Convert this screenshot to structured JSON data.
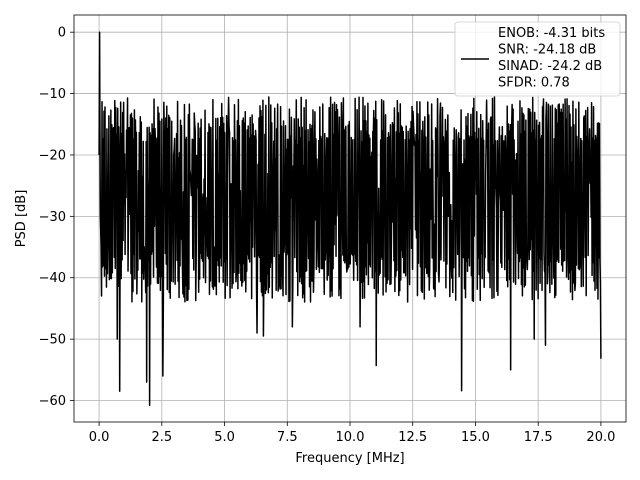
{
  "chart_data": {
    "type": "line",
    "title": "",
    "xlabel": "Frequency [MHz]",
    "ylabel": "PSD [dB]",
    "xlim": [
      -1.0,
      21.0
    ],
    "ylim": [
      -63.5,
      2.8
    ],
    "xticks": [
      0.0,
      2.5,
      5.0,
      7.5,
      10.0,
      12.5,
      15.0,
      17.5,
      20.0
    ],
    "xtick_labels": [
      "0.0",
      "2.5",
      "5.0",
      "7.5",
      "10.0",
      "12.5",
      "15.0",
      "17.5",
      "20.0"
    ],
    "yticks": [
      0,
      -10,
      -20,
      -30,
      -40,
      -50,
      -60
    ],
    "ytick_labels": [
      "0",
      "−10",
      "−20",
      "−30",
      "−40",
      "−50",
      "−60"
    ],
    "grid": true,
    "legend_position": "upper-right",
    "series": [
      {
        "name": "ENOB: -4.31 bits\nSNR: -24.18 dB\nSINAD: -24.2 dB\nSFDR: 0.78",
        "color": "#000000",
        "x_range": [
          0.0,
          20.0
        ],
        "points": 1024,
        "peak": {
          "x": 0.02,
          "y": 0
        },
        "band_upper": [
          -10.5,
          -18
        ],
        "band_lower": [
          -36,
          -44
        ],
        "dips": [
          {
            "x": 0.83,
            "y": -58.5
          },
          {
            "x": 0.72,
            "y": -50
          },
          {
            "x": 1.9,
            "y": -57
          },
          {
            "x": 2.02,
            "y": -60.8
          },
          {
            "x": 2.55,
            "y": -56
          },
          {
            "x": 6.3,
            "y": -49
          },
          {
            "x": 6.55,
            "y": -49.5
          },
          {
            "x": 7.7,
            "y": -48
          },
          {
            "x": 10.4,
            "y": -48
          },
          {
            "x": 11.05,
            "y": -54.3
          },
          {
            "x": 14.45,
            "y": -58.4
          },
          {
            "x": 16.4,
            "y": -55
          },
          {
            "x": 17.35,
            "y": -50
          },
          {
            "x": 17.8,
            "y": -51
          },
          {
            "x": 20.0,
            "y": -53.2
          }
        ]
      }
    ]
  }
}
